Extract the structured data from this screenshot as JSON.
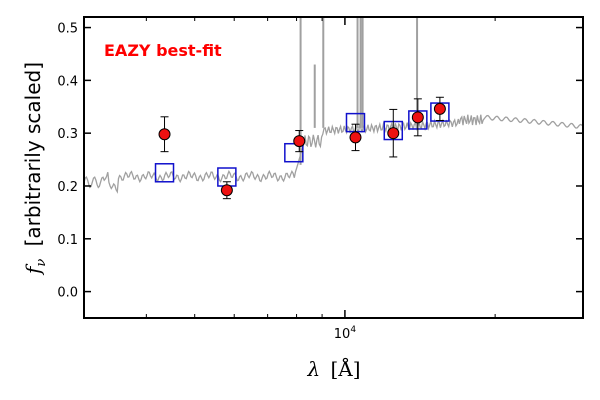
{
  "chart_data": {
    "type": "scatter",
    "annotation": "EAZY best-fit",
    "annotation_color": "#ff0000",
    "xlabel_symbol": "λ",
    "xlabel_unit": "[Å]",
    "ylabel_symbol": "f",
    "ylabel_subscript": "ν",
    "ylabel_text": "[arbitrarily scaled]",
    "x_scale": "log",
    "xlim": [
      3000,
      30000
    ],
    "ylim": [
      -0.05,
      0.52
    ],
    "y_ticks": [
      0.0,
      0.1,
      0.2,
      0.3,
      0.4,
      0.5
    ],
    "y_tick_labels": [
      "0.0",
      "0.1",
      "0.2",
      "0.3",
      "0.4",
      "0.5"
    ],
    "x_tick_label_base": "10",
    "x_tick_label_exp": "4",
    "x_labeled_tick": 10000,
    "x_minor_ticks": [
      4000,
      5000,
      6000,
      7000,
      8000,
      9000,
      20000
    ],
    "colors": {
      "template": "#a0a0a0",
      "model_box": "#1010cc",
      "observed_fill": "#ee1111",
      "observed_edge": "#000000"
    },
    "observed": [
      {
        "x": 4350,
        "y": 0.298,
        "yerr": 0.033
      },
      {
        "x": 5800,
        "y": 0.192,
        "yerr": 0.016
      },
      {
        "x": 8100,
        "y": 0.285,
        "yerr": 0.02
      },
      {
        "x": 10500,
        "y": 0.292,
        "yerr": 0.025
      },
      {
        "x": 12500,
        "y": 0.3,
        "yerr": 0.045
      },
      {
        "x": 14000,
        "y": 0.33,
        "yerr": 0.035
      },
      {
        "x": 15500,
        "y": 0.346,
        "yerr": 0.022
      }
    ],
    "model": [
      {
        "x": 4350,
        "y": 0.225
      },
      {
        "x": 5800,
        "y": 0.217
      },
      {
        "x": 7900,
        "y": 0.263
      },
      {
        "x": 10500,
        "y": 0.32
      },
      {
        "x": 12500,
        "y": 0.305
      },
      {
        "x": 14000,
        "y": 0.325
      },
      {
        "x": 15500,
        "y": 0.34
      }
    ]
  }
}
